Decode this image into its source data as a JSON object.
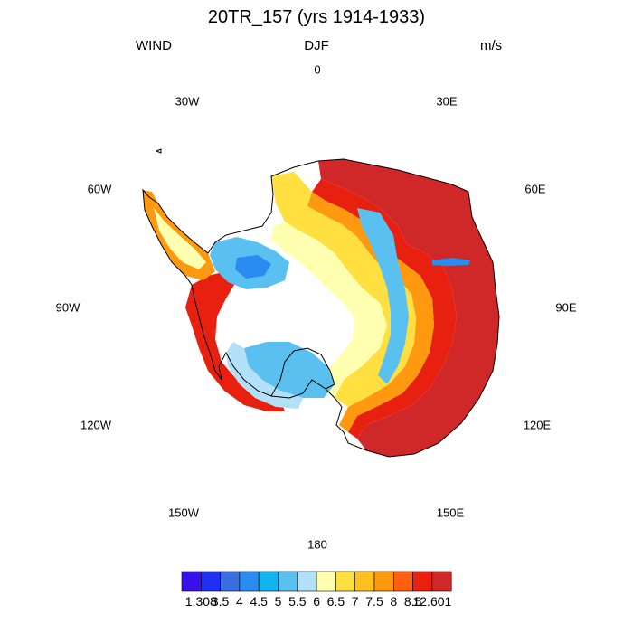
{
  "title": "20TR_157 (yrs 1914-1933)",
  "left_label": "WIND",
  "center_label": "DJF",
  "right_label": "m/s",
  "longitude_labels": {
    "n": "0",
    "ne": "30E",
    "e1": "60E",
    "e2": "90E",
    "e3": "120E",
    "se": "150E",
    "s": "180",
    "sw": "150W",
    "w3": "120W",
    "w2": "90W",
    "w1": "60W",
    "nw": "30W"
  },
  "colorbar": {
    "labels": [
      "1.308",
      "3.5",
      "4",
      "4.5",
      "5",
      "5.5",
      "6",
      "6.5",
      "7",
      "7.5",
      "8",
      "8.5",
      "12.601"
    ],
    "colors": [
      "#3a10e8",
      "#2030f0",
      "#3a6de0",
      "#2a8cf0",
      "#10b4f0",
      "#5ac0f0",
      "#b2e0f8",
      "#ffffb0",
      "#ffe040",
      "#ffc020",
      "#ff9a10",
      "#ff6010",
      "#e82010",
      "#d02828"
    ]
  },
  "map_colors": {
    "coast": "#000000",
    "very_high": "#d02828",
    "high": "#e82010",
    "mid_high": "#ff6010",
    "orange": "#ff9a10",
    "yellow": "#ffe040",
    "light_yellow": "#ffffb0",
    "light_blue": "#b2e0f8",
    "blue": "#5ac0f0",
    "dark_blue": "#2a8cf0",
    "deep_blue": "#3a6de0"
  }
}
